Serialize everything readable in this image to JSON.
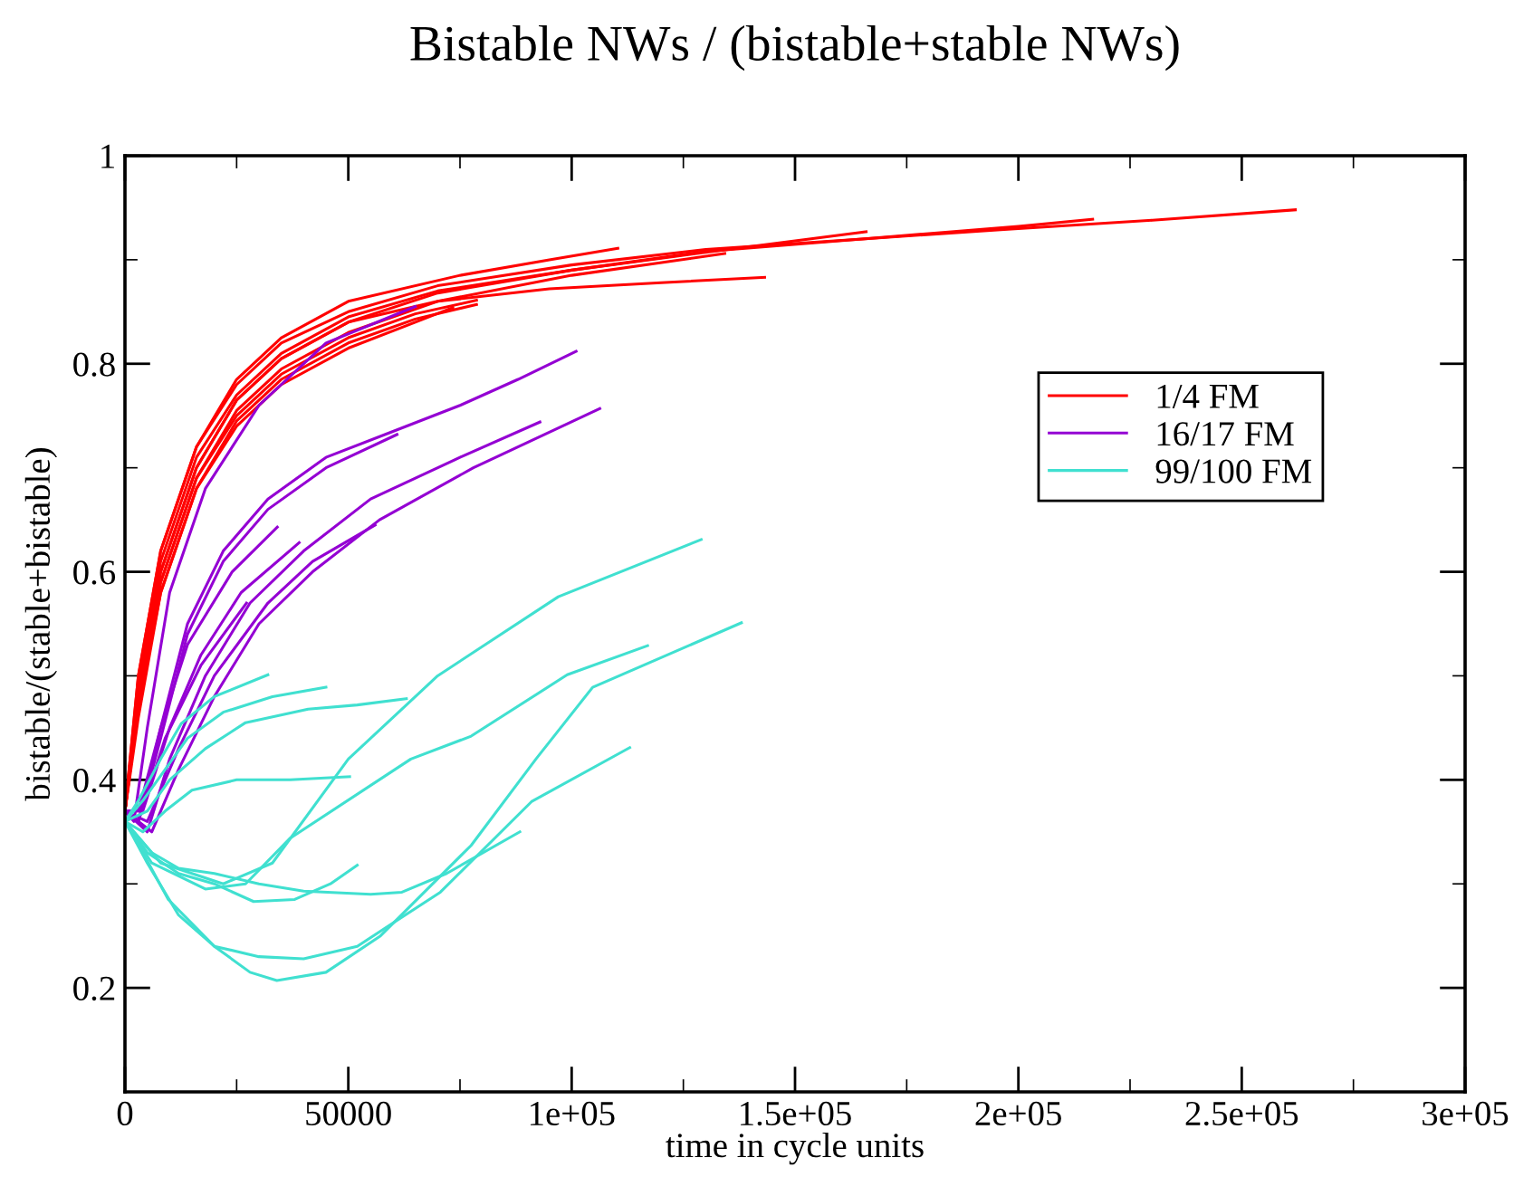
{
  "chart_data": {
    "type": "line",
    "title": "Bistable NWs / (bistable+stable NWs)",
    "xlabel": "time in cycle units",
    "ylabel": "bistable/(stable+bistable)",
    "xlim": [
      0,
      300000
    ],
    "ylim": [
      0.1,
      1
    ],
    "xticks": [
      0,
      50000,
      {
        "value": 100000,
        "label": "1e+05"
      },
      {
        "value": 150000,
        "label": "1.5e+05"
      },
      {
        "value": 200000,
        "label": "2e+05"
      },
      {
        "value": 250000,
        "label": "2.5e+05"
      },
      {
        "value": 300000,
        "label": "3e+05"
      }
    ],
    "yticks": [
      0.2,
      0.4,
      0.6,
      0.8,
      1
    ],
    "legend": "top right",
    "series": [
      {
        "name": "1/4 FM",
        "color": "#ff0000",
        "x": [
          0,
          3000,
          8000,
          16000,
          25000,
          35000,
          50000,
          70000,
          100000,
          130000,
          165000,
          200000,
          230000,
          262000
        ],
        "values": [
          0.37,
          0.5,
          0.62,
          0.72,
          0.78,
          0.82,
          0.85,
          0.875,
          0.895,
          0.91,
          0.92,
          0.93,
          0.938,
          0.948
        ]
      },
      {
        "color": "#ff0000",
        "x": [
          0,
          3000,
          8000,
          16000,
          25000,
          35000,
          50000,
          70000,
          100000,
          130000,
          165000,
          200000,
          216630
        ],
        "values": [
          0.37,
          0.49,
          0.61,
          0.71,
          0.77,
          0.81,
          0.845,
          0.87,
          0.89,
          0.908,
          0.92,
          0.932,
          0.939
        ]
      },
      {
        "color": "#ff0000",
        "x": [
          0,
          3000,
          8000,
          16000,
          25000,
          35000,
          50000,
          70000,
          100000,
          135000,
          165920
        ],
        "values": [
          0.37,
          0.49,
          0.6,
          0.7,
          0.765,
          0.805,
          0.84,
          0.868,
          0.89,
          0.91,
          0.927
        ]
      },
      {
        "color": "#ff0000",
        "x": [
          0,
          3000,
          8000,
          16000,
          25000,
          35000,
          50000,
          70000,
          100000,
          134280
        ],
        "values": [
          0.37,
          0.48,
          0.59,
          0.69,
          0.755,
          0.795,
          0.83,
          0.86,
          0.885,
          0.906
        ]
      },
      {
        "color": "#ff0000",
        "x": [
          0,
          3000,
          8000,
          16000,
          25000,
          35000,
          50000,
          75000,
          95000,
          110340
        ],
        "values": [
          0.37,
          0.5,
          0.62,
          0.72,
          0.785,
          0.825,
          0.86,
          0.885,
          0.9,
          0.911
        ]
      },
      {
        "color": "#ff0000",
        "x": [
          0,
          3000,
          8000,
          16000,
          25000,
          35000,
          50000,
          70000,
          95000,
          120000,
          143200
        ],
        "values": [
          0.37,
          0.48,
          0.6,
          0.7,
          0.765,
          0.805,
          0.84,
          0.86,
          0.872,
          0.878,
          0.883
        ]
      },
      {
        "color": "#ff0000",
        "x": [
          0,
          3000,
          8000,
          16000,
          25000,
          35000,
          50000,
          65000,
          78700
        ],
        "values": [
          0.37,
          0.47,
          0.59,
          0.69,
          0.75,
          0.79,
          0.825,
          0.848,
          0.861
        ]
      },
      {
        "color": "#ff0000",
        "x": [
          0,
          3000,
          8000,
          16000,
          25000,
          35000,
          50000,
          65000,
          78700
        ],
        "values": [
          0.37,
          0.47,
          0.58,
          0.68,
          0.745,
          0.785,
          0.82,
          0.843,
          0.857
        ]
      },
      {
        "color": "#ff0000",
        "x": [
          0,
          3000,
          8000,
          16000,
          25000,
          35000,
          50000,
          65000,
          73400
        ],
        "values": [
          0.37,
          0.46,
          0.58,
          0.68,
          0.74,
          0.78,
          0.815,
          0.84,
          0.854
        ]
      },
      {
        "name": "16/17 FM",
        "color": "#9400d3",
        "x": [
          0,
          2000,
          5000,
          10000,
          18000,
          30000,
          45000,
          65000
        ],
        "values": [
          0.37,
          0.36,
          0.45,
          0.58,
          0.68,
          0.76,
          0.82,
          0.855
        ]
      },
      {
        "color": "#9400d3",
        "x": [
          0,
          3000,
          8000,
          14000,
          22000,
          32000,
          45000,
          60000,
          75000,
          88000,
          101000
        ],
        "values": [
          0.37,
          0.36,
          0.45,
          0.55,
          0.62,
          0.67,
          0.71,
          0.735,
          0.76,
          0.785,
          0.812
        ]
      },
      {
        "color": "#9400d3",
        "x": [
          0,
          3000,
          8000,
          14000,
          22000,
          32000,
          45000,
          60900
        ],
        "values": [
          0.37,
          0.36,
          0.44,
          0.54,
          0.61,
          0.66,
          0.7,
          0.732
        ]
      },
      {
        "color": "#9400d3",
        "x": [
          0,
          5000,
          10000,
          18000,
          28000,
          40000,
          55000,
          75000,
          92900
        ],
        "values": [
          0.37,
          0.35,
          0.42,
          0.5,
          0.57,
          0.62,
          0.67,
          0.71,
          0.744
        ]
      },
      {
        "color": "#9400d3",
        "x": [
          0,
          6000,
          12000,
          20000,
          30000,
          42000,
          57000,
          78000,
          106300
        ],
        "values": [
          0.37,
          0.35,
          0.41,
          0.48,
          0.55,
          0.6,
          0.65,
          0.7,
          0.757
        ]
      },
      {
        "color": "#9400d3",
        "x": [
          0,
          5000,
          12000,
          20000,
          32000,
          42000,
          56000
        ],
        "values": [
          0.37,
          0.36,
          0.43,
          0.5,
          0.57,
          0.61,
          0.645
        ]
      },
      {
        "color": "#9400d3",
        "x": [
          0,
          4000,
          10000,
          17000,
          26000,
          39000
        ],
        "values": [
          0.37,
          0.37,
          0.45,
          0.52,
          0.58,
          0.628
        ]
      },
      {
        "color": "#9400d3",
        "x": [
          0,
          3000,
          8000,
          14000,
          24000,
          34100
        ],
        "values": [
          0.37,
          0.37,
          0.45,
          0.53,
          0.6,
          0.643
        ]
      },
      {
        "color": "#9400d3",
        "x": [
          0,
          3000,
          9000,
          17000,
          27200
        ],
        "values": [
          0.37,
          0.36,
          0.44,
          0.51,
          0.57
        ]
      },
      {
        "name": "99/100 FM",
        "color": "#40e0d0",
        "x": [
          0,
          3000,
          8000,
          12600,
          20000,
          32000
        ],
        "values": [
          0.36,
          0.38,
          0.42,
          0.454,
          0.48,
          0.501
        ]
      },
      {
        "color": "#40e0d0",
        "x": [
          0,
          4000,
          9000,
          14000,
          22000,
          33000,
          45000
        ],
        "values": [
          0.36,
          0.38,
          0.41,
          0.44,
          0.465,
          0.48,
          0.489
        ]
      },
      {
        "color": "#40e0d0",
        "x": [
          0,
          5000,
          10000,
          18000,
          27000,
          41000,
          52000,
          63000
        ],
        "values": [
          0.36,
          0.37,
          0.4,
          0.43,
          0.455,
          0.468,
          0.472,
          0.478
        ]
      },
      {
        "color": "#40e0d0",
        "x": [
          0,
          4000,
          9000,
          15000,
          25000,
          37000,
          50300
        ],
        "values": [
          0.36,
          0.35,
          0.37,
          0.39,
          0.4,
          0.4,
          0.403
        ]
      },
      {
        "color": "#40e0d0",
        "x": [
          0,
          5000,
          12000,
          20000,
          28800,
          38000,
          46000,
          52000
        ],
        "values": [
          0.36,
          0.33,
          0.31,
          0.3,
          0.283,
          0.285,
          0.3,
          0.318
        ]
      },
      {
        "color": "#40e0d0",
        "x": [
          0,
          6000,
          12000,
          20000,
          30000,
          40000,
          55000,
          62000,
          72000,
          88400
        ],
        "values": [
          0.36,
          0.33,
          0.315,
          0.31,
          0.3,
          0.293,
          0.29,
          0.292,
          0.31,
          0.35
        ]
      },
      {
        "color": "#40e0d0",
        "x": [
          0,
          8000,
          22000,
          33000,
          50000,
          70000,
          97000,
          129000
        ],
        "values": [
          0.36,
          0.32,
          0.3,
          0.32,
          0.42,
          0.5,
          0.576,
          0.631
        ]
      },
      {
        "color": "#40e0d0",
        "x": [
          0,
          6000,
          18000,
          27000,
          37000,
          64000,
          77500,
          99000,
          117000
        ],
        "values": [
          0.36,
          0.32,
          0.295,
          0.3,
          0.344,
          0.42,
          0.442,
          0.501,
          0.529
        ]
      },
      {
        "color": "#40e0d0",
        "x": [
          0,
          4000,
          9700,
          20000,
          28000,
          34000,
          45000,
          57200,
          77500,
          92000,
          104700,
          138000
        ],
        "values": [
          0.36,
          0.33,
          0.285,
          0.24,
          0.215,
          0.207,
          0.215,
          0.25,
          0.337,
          0.42,
          0.489,
          0.551
        ]
      },
      {
        "color": "#40e0d0",
        "x": [
          0,
          5000,
          12000,
          20000,
          30000,
          40000,
          52000,
          70600,
          91000,
          113000
        ],
        "values": [
          0.36,
          0.32,
          0.27,
          0.24,
          0.23,
          0.228,
          0.24,
          0.292,
          0.379,
          0.431
        ]
      }
    ]
  }
}
